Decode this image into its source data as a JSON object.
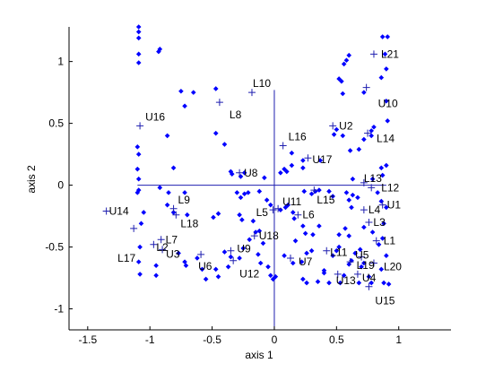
{
  "chart_data": {
    "type": "scatter",
    "title": "",
    "xlabel": "axis 1",
    "ylabel": "axis 2",
    "xlim": [
      -1.65,
      1.42
    ],
    "ylim": [
      -1.17,
      1.28
    ],
    "xticks": [
      -1.5,
      -1,
      -0.5,
      0,
      0.5,
      1
    ],
    "xtick_labels": [
      "-1.5",
      "-1",
      "-0.5",
      "0",
      "0.5",
      "1"
    ],
    "yticks": [
      -1,
      -0.5,
      0,
      0.5,
      1
    ],
    "ytick_labels": [
      "-1",
      "-0.5",
      "0",
      "0.5",
      "1"
    ],
    "grid": false,
    "colors": {
      "points": "#0000ff",
      "crosses": "#1f1fb0",
      "axes": "#000000",
      "reference_lines": "#1f1fb0"
    },
    "reference_lines": {
      "horizontal_y": 0,
      "horizontal_x_range": [
        -1.1,
        0.9
      ],
      "vertical_x": 0,
      "vertical_y_range": [
        -1.17,
        0.77
      ]
    },
    "points": [
      [
        -1.09,
        1.28
      ],
      [
        -1.09,
        1.24
      ],
      [
        -1.09,
        1.19
      ],
      [
        -1.09,
        1.06
      ],
      [
        -1.09,
        0.99
      ],
      [
        -0.93,
        1.08
      ],
      [
        -0.92,
        1.1
      ],
      [
        0.6,
        1.05
      ],
      [
        0.58,
        1.01
      ],
      [
        0.56,
        0.98
      ],
      [
        0.87,
        1.2
      ],
      [
        0.91,
        1.2
      ],
      [
        0.89,
        1.06
      ],
      [
        0.9,
        0.94
      ],
      [
        -0.75,
        0.76
      ],
      [
        -0.72,
        0.64
      ],
      [
        -0.65,
        0.75
      ],
      [
        -0.47,
        0.78
      ],
      [
        0.52,
        0.86
      ],
      [
        0.54,
        0.84
      ],
      [
        0.86,
        0.87
      ],
      [
        0.55,
        0.74
      ],
      [
        0.72,
        0.75
      ],
      [
        0.9,
        0.68
      ],
      [
        0.91,
        0.52
      ],
      [
        0.8,
        0.47
      ],
      [
        0.5,
        0.45
      ],
      [
        0.48,
        0.41
      ],
      [
        0.55,
        0.4
      ],
      [
        -0.47,
        0.42
      ],
      [
        -0.4,
        0.33
      ],
      [
        -1.1,
        0.31
      ],
      [
        -1.09,
        0.25
      ],
      [
        -1.1,
        0.13
      ],
      [
        -0.86,
        0.4
      ],
      [
        0.14,
        0.26
      ],
      [
        0.14,
        0.16
      ],
      [
        0.37,
        0.2
      ],
      [
        0.61,
        0.28
      ],
      [
        0.68,
        0.29
      ],
      [
        0.72,
        0.37
      ],
      [
        0.78,
        0.44
      ],
      [
        0.78,
        0.4
      ],
      [
        -0.81,
        0.14
      ],
      [
        -0.35,
        0.11
      ],
      [
        -0.34,
        0.09
      ],
      [
        -0.24,
        0.1
      ],
      [
        -0.27,
        0.07
      ],
      [
        -0.08,
        0.06
      ],
      [
        0.05,
        0.1
      ],
      [
        0.08,
        0.13
      ],
      [
        0.1,
        0.11
      ],
      [
        0.23,
        0.14
      ],
      [
        0.23,
        0.2
      ],
      [
        0.86,
        0.14
      ],
      [
        0.9,
        0.16
      ],
      [
        0.87,
        0.08
      ],
      [
        0.79,
        0.05
      ],
      [
        0.63,
        0.05
      ],
      [
        -1.09,
        0.05
      ],
      [
        -1.1,
        -0.06
      ],
      [
        -0.92,
        -0.02
      ],
      [
        -0.85,
        -0.06
      ],
      [
        -0.72,
        -0.06
      ],
      [
        -0.3,
        -0.06
      ],
      [
        -0.27,
        -0.1
      ],
      [
        -0.24,
        -0.07
      ],
      [
        -0.12,
        -0.05
      ],
      [
        -0.06,
        -0.12
      ],
      [
        -0.03,
        -0.16
      ],
      [
        0.05,
        -0.2
      ],
      [
        0.09,
        -0.18
      ],
      [
        0.11,
        -0.16
      ],
      [
        0.15,
        -0.22
      ],
      [
        0.24,
        -0.05
      ],
      [
        0.3,
        -0.07
      ],
      [
        0.33,
        -0.05
      ],
      [
        0.36,
        -0.04
      ],
      [
        0.44,
        -0.05
      ],
      [
        0.47,
        -0.09
      ],
      [
        0.58,
        -0.06
      ],
      [
        0.6,
        -0.12
      ],
      [
        0.62,
        -0.18
      ],
      [
        0.63,
        -0.08
      ],
      [
        0.67,
        -0.1
      ],
      [
        0.83,
        -0.06
      ],
      [
        0.86,
        -0.13
      ],
      [
        0.9,
        -0.18
      ],
      [
        -1.05,
        -0.22
      ],
      [
        -1.07,
        -0.31
      ],
      [
        -0.86,
        -0.16
      ],
      [
        -0.81,
        -0.22
      ],
      [
        -0.7,
        -0.24
      ],
      [
        -0.49,
        -0.26
      ],
      [
        -0.45,
        -0.23
      ],
      [
        -0.28,
        -0.24
      ],
      [
        -0.26,
        -0.28
      ],
      [
        -0.17,
        -0.29
      ],
      [
        -0.12,
        -0.37
      ],
      [
        -0.09,
        -0.47
      ],
      [
        0.16,
        -0.27
      ],
      [
        0.23,
        -0.33
      ],
      [
        0.25,
        -0.39
      ],
      [
        0.31,
        -0.4
      ],
      [
        0.36,
        -0.33
      ],
      [
        0.52,
        -0.4
      ],
      [
        0.57,
        -0.35
      ],
      [
        0.72,
        -0.34
      ],
      [
        0.79,
        -0.38
      ],
      [
        0.87,
        -0.43
      ],
      [
        0.88,
        -0.31
      ],
      [
        -1.08,
        -0.5
      ],
      [
        -1.09,
        -0.62
      ],
      [
        -1.08,
        -0.72
      ],
      [
        -0.95,
        -0.65
      ],
      [
        -0.95,
        -0.73
      ],
      [
        -0.77,
        -0.55
      ],
      [
        -0.72,
        -0.62
      ],
      [
        -0.71,
        -0.65
      ],
      [
        -0.62,
        -0.59
      ],
      [
        -0.58,
        -0.68
      ],
      [
        -0.55,
        -0.76
      ],
      [
        -0.47,
        -0.68
      ],
      [
        -0.45,
        -0.74
      ],
      [
        -0.4,
        -0.54
      ],
      [
        -0.35,
        -0.58
      ],
      [
        -0.37,
        -0.66
      ],
      [
        -0.28,
        -0.59
      ],
      [
        -0.25,
        -0.51
      ],
      [
        -0.2,
        -0.44
      ],
      [
        -0.15,
        -0.38
      ],
      [
        -0.13,
        -0.56
      ],
      [
        -0.11,
        -0.63
      ],
      [
        -0.05,
        -0.66
      ],
      [
        -0.03,
        -0.73
      ],
      [
        -0.01,
        -0.76
      ],
      [
        0.01,
        -0.74
      ],
      [
        0.08,
        -0.57
      ],
      [
        0.15,
        -0.63
      ],
      [
        0.17,
        -0.45
      ],
      [
        0.23,
        -0.76
      ],
      [
        0.26,
        -0.79
      ],
      [
        0.3,
        -0.53
      ],
      [
        0.35,
        -0.78
      ],
      [
        0.4,
        -0.71
      ],
      [
        0.44,
        -0.79
      ],
      [
        0.47,
        -0.57
      ],
      [
        0.5,
        -0.53
      ],
      [
        0.52,
        -0.5
      ],
      [
        0.53,
        -0.79
      ],
      [
        0.56,
        -0.73
      ],
      [
        0.6,
        -0.64
      ],
      [
        0.62,
        -0.61
      ],
      [
        0.65,
        -0.55
      ],
      [
        0.68,
        -0.79
      ],
      [
        0.69,
        -0.52
      ],
      [
        0.7,
        -0.66
      ],
      [
        0.72,
        -0.63
      ],
      [
        0.76,
        -0.74
      ],
      [
        0.78,
        -0.79
      ],
      [
        0.84,
        -0.48
      ],
      [
        0.86,
        -0.68
      ],
      [
        0.88,
        -0.79
      ],
      [
        0.9,
        -0.57
      ],
      [
        0.92,
        -0.8
      ],
      [
        0.6,
        -0.41
      ],
      [
        -0.21,
        -0.06
      ],
      [
        -1.09,
        -0.04
      ],
      [
        0.26,
        -0.55
      ],
      [
        0.22,
        -0.62
      ],
      [
        0.4,
        -0.69
      ]
    ],
    "annotations": [
      {
        "label": "L21",
        "x": 0.8,
        "y": 1.06,
        "ldx": 5,
        "ldy": 0
      },
      {
        "label": "L10",
        "x": -0.18,
        "y": 0.75,
        "ldx": -2,
        "ldy": -10
      },
      {
        "label": "U10",
        "x": 0.74,
        "y": 0.79,
        "ldx": 10,
        "ldy": 18
      },
      {
        "label": "L8",
        "x": -0.44,
        "y": 0.67,
        "ldx": 8,
        "ldy": 14
      },
      {
        "label": "U16",
        "x": -1.08,
        "y": 0.48,
        "ldx": 3,
        "ldy": -10
      },
      {
        "label": "U2",
        "x": 0.47,
        "y": 0.48,
        "ldx": 4,
        "ldy": 0
      },
      {
        "label": "L14",
        "x": 0.75,
        "y": 0.42,
        "ldx": 7,
        "ldy": 6
      },
      {
        "label": "L16",
        "x": 0.07,
        "y": 0.32,
        "ldx": 3,
        "ldy": -10
      },
      {
        "label": "U17",
        "x": 0.27,
        "y": 0.22,
        "ldx": 2,
        "ldy": 2
      },
      {
        "label": "U8",
        "x": -0.28,
        "y": 0.1,
        "ldx": 2,
        "ldy": 0
      },
      {
        "label": "L13",
        "x": 0.72,
        "y": 0.02,
        "ldx": -3,
        "ldy": -5
      },
      {
        "label": "L12",
        "x": 0.78,
        "y": -0.02,
        "ldx": 8,
        "ldy": 0
      },
      {
        "label": "L15",
        "x": 0.32,
        "y": -0.04,
        "ldx": 0,
        "ldy": 11
      },
      {
        "label": "L9",
        "x": -0.81,
        "y": -0.19,
        "ldx": 2,
        "ldy": -10
      },
      {
        "label": "U11",
        "x": 0.03,
        "y": -0.19,
        "ldx": 2,
        "ldy": -8
      },
      {
        "label": "L5",
        "x": -0.01,
        "y": -0.2,
        "ldx": -22,
        "ldy": 3
      },
      {
        "label": "U1",
        "x": 0.87,
        "y": -0.16,
        "ldx": 2,
        "ldy": 0
      },
      {
        "label": "L4",
        "x": 0.72,
        "y": -0.2,
        "ldx": 2,
        "ldy": 0
      },
      {
        "label": "U14",
        "x": -1.35,
        "y": -0.21,
        "ldx": 0,
        "ldy": 0
      },
      {
        "label": "L6",
        "x": 0.19,
        "y": -0.24,
        "ldx": 2,
        "ldy": 0
      },
      {
        "label": "L18",
        "x": -0.79,
        "y": -0.24,
        "ldx": 2,
        "ldy": 10
      },
      {
        "label": "L3",
        "x": 0.76,
        "y": -0.3,
        "ldx": 2,
        "ldy": 0
      },
      {
        "label": "L17",
        "x": -1.13,
        "y": -0.35,
        "ldx": -21,
        "ldy": 33
      },
      {
        "label": "U18",
        "x": -0.16,
        "y": -0.41,
        "ldx": 2,
        "ldy": 0
      },
      {
        "label": "L7",
        "x": -0.91,
        "y": -0.44,
        "ldx": 2,
        "ldy": 0
      },
      {
        "label": "L1",
        "x": 0.82,
        "y": -0.45,
        "ldx": 5,
        "ldy": 0
      },
      {
        "label": "L2",
        "x": -0.97,
        "y": -0.48,
        "ldx": 0,
        "ldy": 3
      },
      {
        "label": "U9",
        "x": -0.35,
        "y": -0.53,
        "ldx": 4,
        "ldy": -2
      },
      {
        "label": "U3",
        "x": -0.9,
        "y": -0.52,
        "ldx": 1,
        "ldy": 5
      },
      {
        "label": "L11",
        "x": 0.42,
        "y": -0.53,
        "ldx": 1,
        "ldy": 2
      },
      {
        "label": "U5",
        "x": 0.7,
        "y": -0.58,
        "ldx": -10,
        "ldy": -2
      },
      {
        "label": "L19",
        "x": 0.61,
        "y": -0.62,
        "ldx": 4,
        "ldy": 4
      },
      {
        "label": "U6",
        "x": -0.59,
        "y": -0.56,
        "ldx": -6,
        "ldy": 13
      },
      {
        "label": "U7",
        "x": 0.13,
        "y": -0.59,
        "ldx": 6,
        "ldy": 4
      },
      {
        "label": "L20",
        "x": 0.8,
        "y": -0.63,
        "ldx": 8,
        "ldy": 4
      },
      {
        "label": "U12",
        "x": -0.33,
        "y": -0.61,
        "ldx": 4,
        "ldy": 15
      },
      {
        "label": "U13",
        "x": 0.51,
        "y": -0.72,
        "ldx": -5,
        "ldy": 7
      },
      {
        "label": "U4",
        "x": 0.67,
        "y": -0.72,
        "ldx": 2,
        "ldy": 4
      },
      {
        "label": "U15",
        "x": 0.76,
        "y": -0.82,
        "ldx": 4,
        "ldy": 16
      }
    ]
  }
}
